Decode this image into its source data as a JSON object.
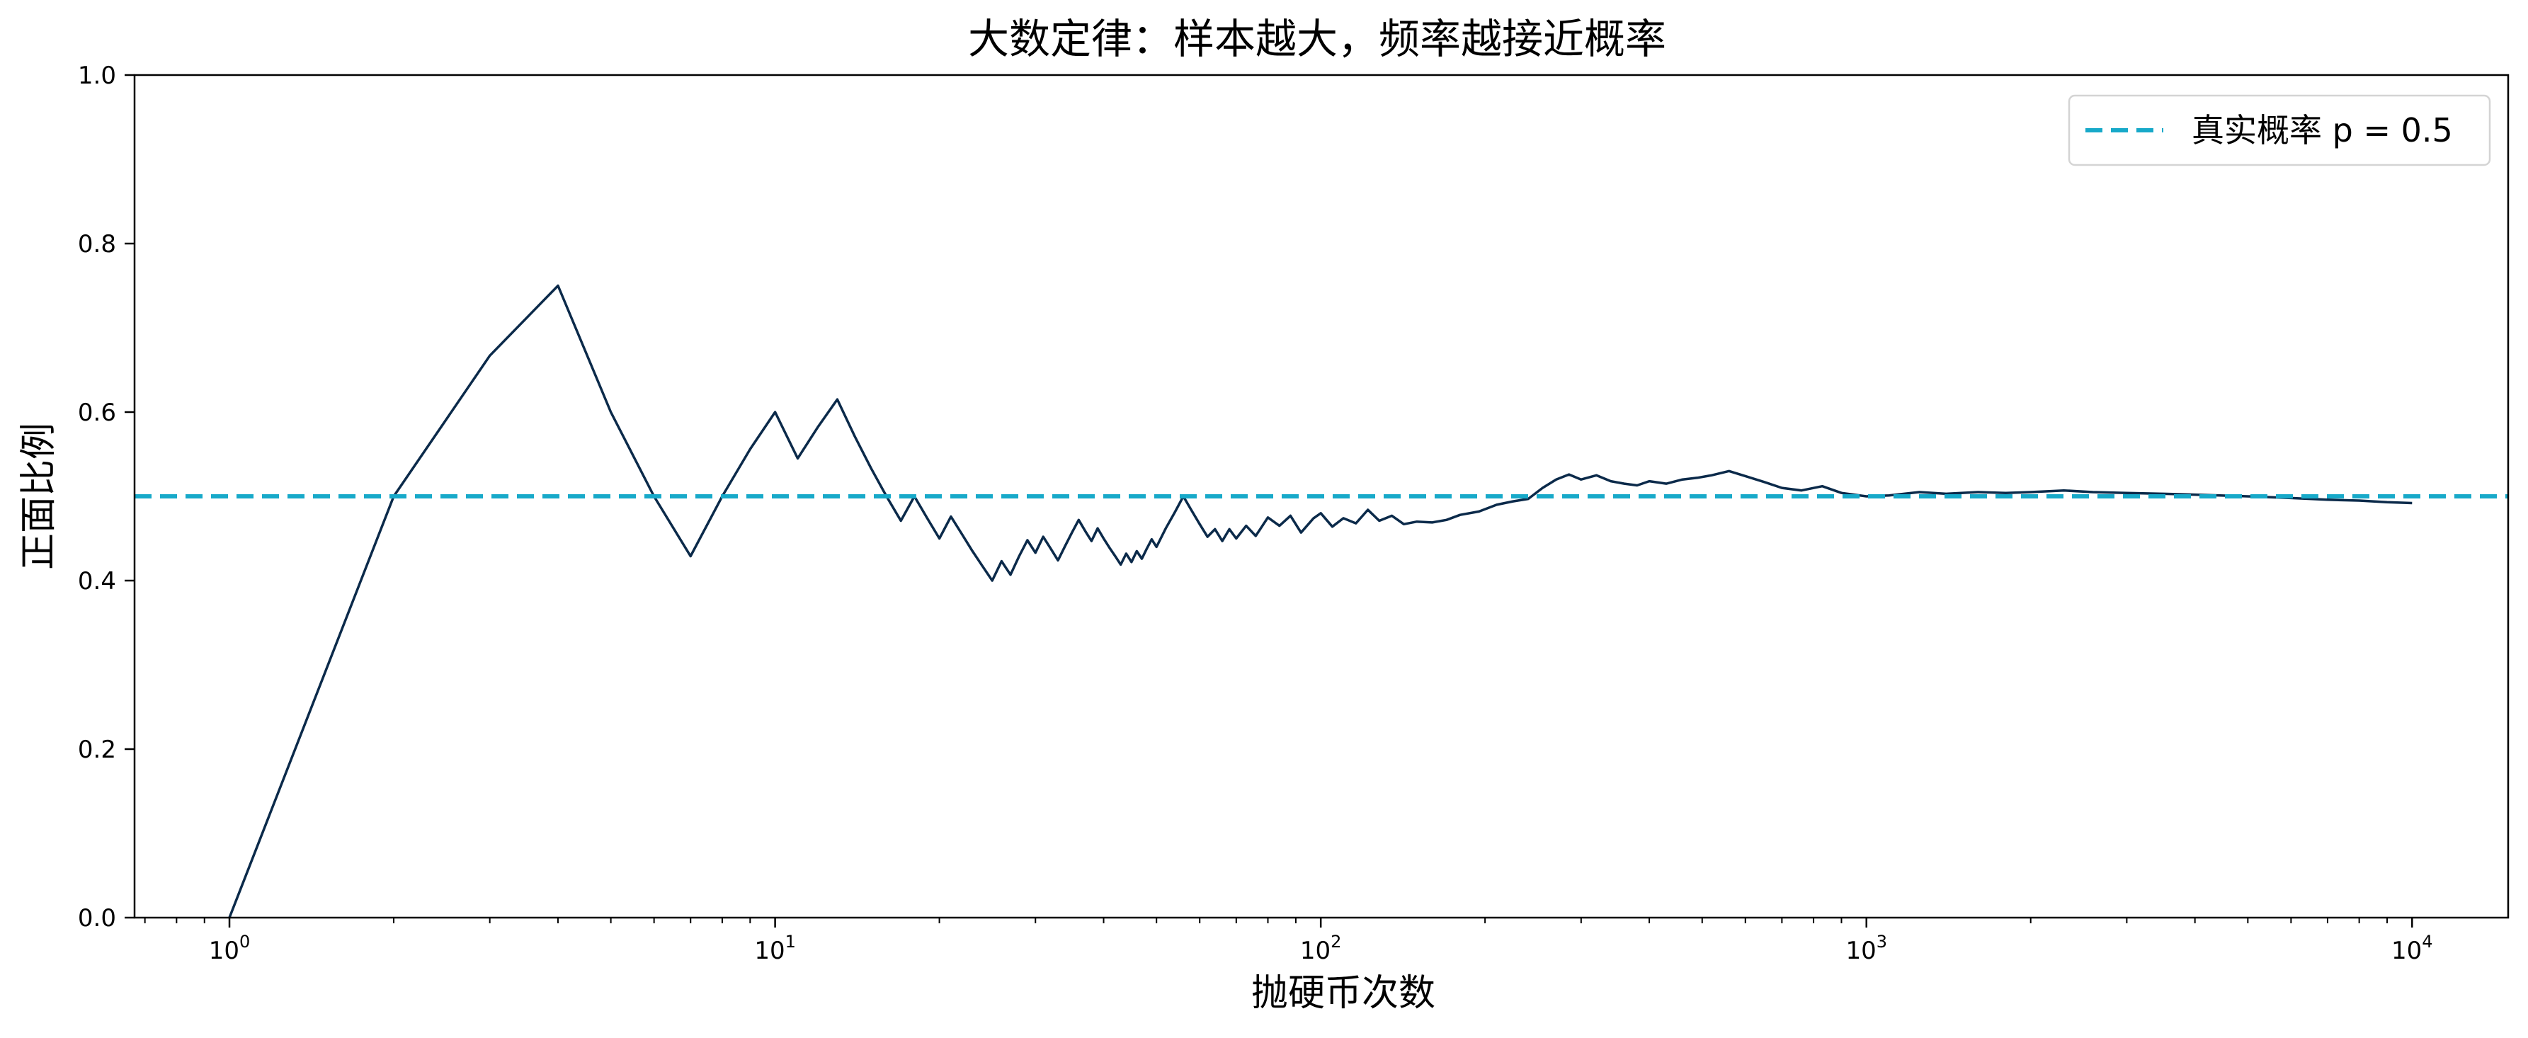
{
  "chart_data": {
    "type": "line",
    "title": "大数定律：样本越大，频率越接近概率",
    "xlabel": "抛硬币次数",
    "ylabel": "正面比例",
    "x_scale": "log",
    "xlim": [
      0.67,
      15000
    ],
    "ylim": [
      0.0,
      1.0
    ],
    "x_ticks": [
      {
        "value": 1,
        "base": "10",
        "exp": "0"
      },
      {
        "value": 10,
        "base": "10",
        "exp": "1"
      },
      {
        "value": 100,
        "base": "10",
        "exp": "2"
      },
      {
        "value": 1000,
        "base": "10",
        "exp": "3"
      },
      {
        "value": 10000,
        "base": "10",
        "exp": "4"
      }
    ],
    "y_ticks": [
      {
        "value": 0.0,
        "label": "0.0"
      },
      {
        "value": 0.2,
        "label": "0.2"
      },
      {
        "value": 0.4,
        "label": "0.4"
      },
      {
        "value": 0.6,
        "label": "0.6"
      },
      {
        "value": 0.8,
        "label": "0.8"
      },
      {
        "value": 1.0,
        "label": "1.0"
      }
    ],
    "grid": false,
    "legend": {
      "position": "top-right",
      "entries": [
        "真实概率 p = 0.5"
      ]
    },
    "reference_line": {
      "y": 0.5,
      "style": "dashed",
      "color": "#17a9c9",
      "label": "真实概率 p = 0.5"
    },
    "series": [
      {
        "color": "#0b2a4a",
        "points": [
          [
            1,
            0.0
          ],
          [
            2,
            0.5
          ],
          [
            3,
            0.667
          ],
          [
            4,
            0.75
          ],
          [
            5,
            0.6
          ],
          [
            6,
            0.5
          ],
          [
            7,
            0.429
          ],
          [
            8,
            0.5
          ],
          [
            9,
            0.556
          ],
          [
            10,
            0.6
          ],
          [
            11,
            0.545
          ],
          [
            12,
            0.583
          ],
          [
            13,
            0.615
          ],
          [
            14,
            0.571
          ],
          [
            15,
            0.533
          ],
          [
            16,
            0.5
          ],
          [
            17,
            0.471
          ],
          [
            18,
            0.5
          ],
          [
            19,
            0.474
          ],
          [
            20,
            0.45
          ],
          [
            21,
            0.476
          ],
          [
            22,
            0.455
          ],
          [
            23,
            0.435
          ],
          [
            24,
            0.417
          ],
          [
            25,
            0.4
          ],
          [
            26,
            0.423
          ],
          [
            27,
            0.407
          ],
          [
            28,
            0.429
          ],
          [
            29,
            0.448
          ],
          [
            30,
            0.433
          ],
          [
            31,
            0.452
          ],
          [
            32,
            0.438
          ],
          [
            33,
            0.424
          ],
          [
            34,
            0.441
          ],
          [
            35,
            0.457
          ],
          [
            36,
            0.472
          ],
          [
            37,
            0.459
          ],
          [
            38,
            0.447
          ],
          [
            39,
            0.462
          ],
          [
            40,
            0.45
          ],
          [
            41,
            0.439
          ],
          [
            42,
            0.429
          ],
          [
            43,
            0.419
          ],
          [
            44,
            0.432
          ],
          [
            45,
            0.422
          ],
          [
            46,
            0.435
          ],
          [
            47,
            0.426
          ],
          [
            48,
            0.438
          ],
          [
            49,
            0.449
          ],
          [
            50,
            0.44
          ],
          [
            52,
            0.462
          ],
          [
            54,
            0.481
          ],
          [
            56,
            0.5
          ],
          [
            58,
            0.483
          ],
          [
            60,
            0.467
          ],
          [
            62,
            0.452
          ],
          [
            64,
            0.461
          ],
          [
            66,
            0.447
          ],
          [
            68,
            0.461
          ],
          [
            70,
            0.45
          ],
          [
            73,
            0.465
          ],
          [
            76,
            0.453
          ],
          [
            80,
            0.475
          ],
          [
            84,
            0.465
          ],
          [
            88,
            0.477
          ],
          [
            92,
            0.457
          ],
          [
            97,
            0.474
          ],
          [
            100,
            0.48
          ],
          [
            105,
            0.464
          ],
          [
            110,
            0.474
          ],
          [
            116,
            0.468
          ],
          [
            122,
            0.484
          ],
          [
            128,
            0.471
          ],
          [
            135,
            0.477
          ],
          [
            142,
            0.467
          ],
          [
            150,
            0.47
          ],
          [
            160,
            0.469
          ],
          [
            170,
            0.472
          ],
          [
            180,
            0.478
          ],
          [
            195,
            0.482
          ],
          [
            210,
            0.49
          ],
          [
            225,
            0.494
          ],
          [
            240,
            0.497
          ],
          [
            255,
            0.51
          ],
          [
            270,
            0.52
          ],
          [
            285,
            0.526
          ],
          [
            300,
            0.52
          ],
          [
            320,
            0.525
          ],
          [
            340,
            0.518
          ],
          [
            360,
            0.515
          ],
          [
            380,
            0.513
          ],
          [
            400,
            0.518
          ],
          [
            430,
            0.515
          ],
          [
            460,
            0.52
          ],
          [
            490,
            0.522
          ],
          [
            520,
            0.525
          ],
          [
            560,
            0.53
          ],
          [
            600,
            0.524
          ],
          [
            650,
            0.517
          ],
          [
            700,
            0.51
          ],
          [
            760,
            0.507
          ],
          [
            830,
            0.512
          ],
          [
            900,
            0.504
          ],
          [
            1000,
            0.5
          ],
          [
            1100,
            0.501
          ],
          [
            1250,
            0.505
          ],
          [
            1400,
            0.503
          ],
          [
            1600,
            0.505
          ],
          [
            1800,
            0.504
          ],
          [
            2000,
            0.505
          ],
          [
            2300,
            0.507
          ],
          [
            2600,
            0.505
          ],
          [
            3000,
            0.504
          ],
          [
            3500,
            0.503
          ],
          [
            4000,
            0.502
          ],
          [
            5000,
            0.5
          ],
          [
            6000,
            0.498
          ],
          [
            7000,
            0.496
          ],
          [
            8000,
            0.495
          ],
          [
            9000,
            0.493
          ],
          [
            10000,
            0.492
          ]
        ]
      }
    ]
  }
}
